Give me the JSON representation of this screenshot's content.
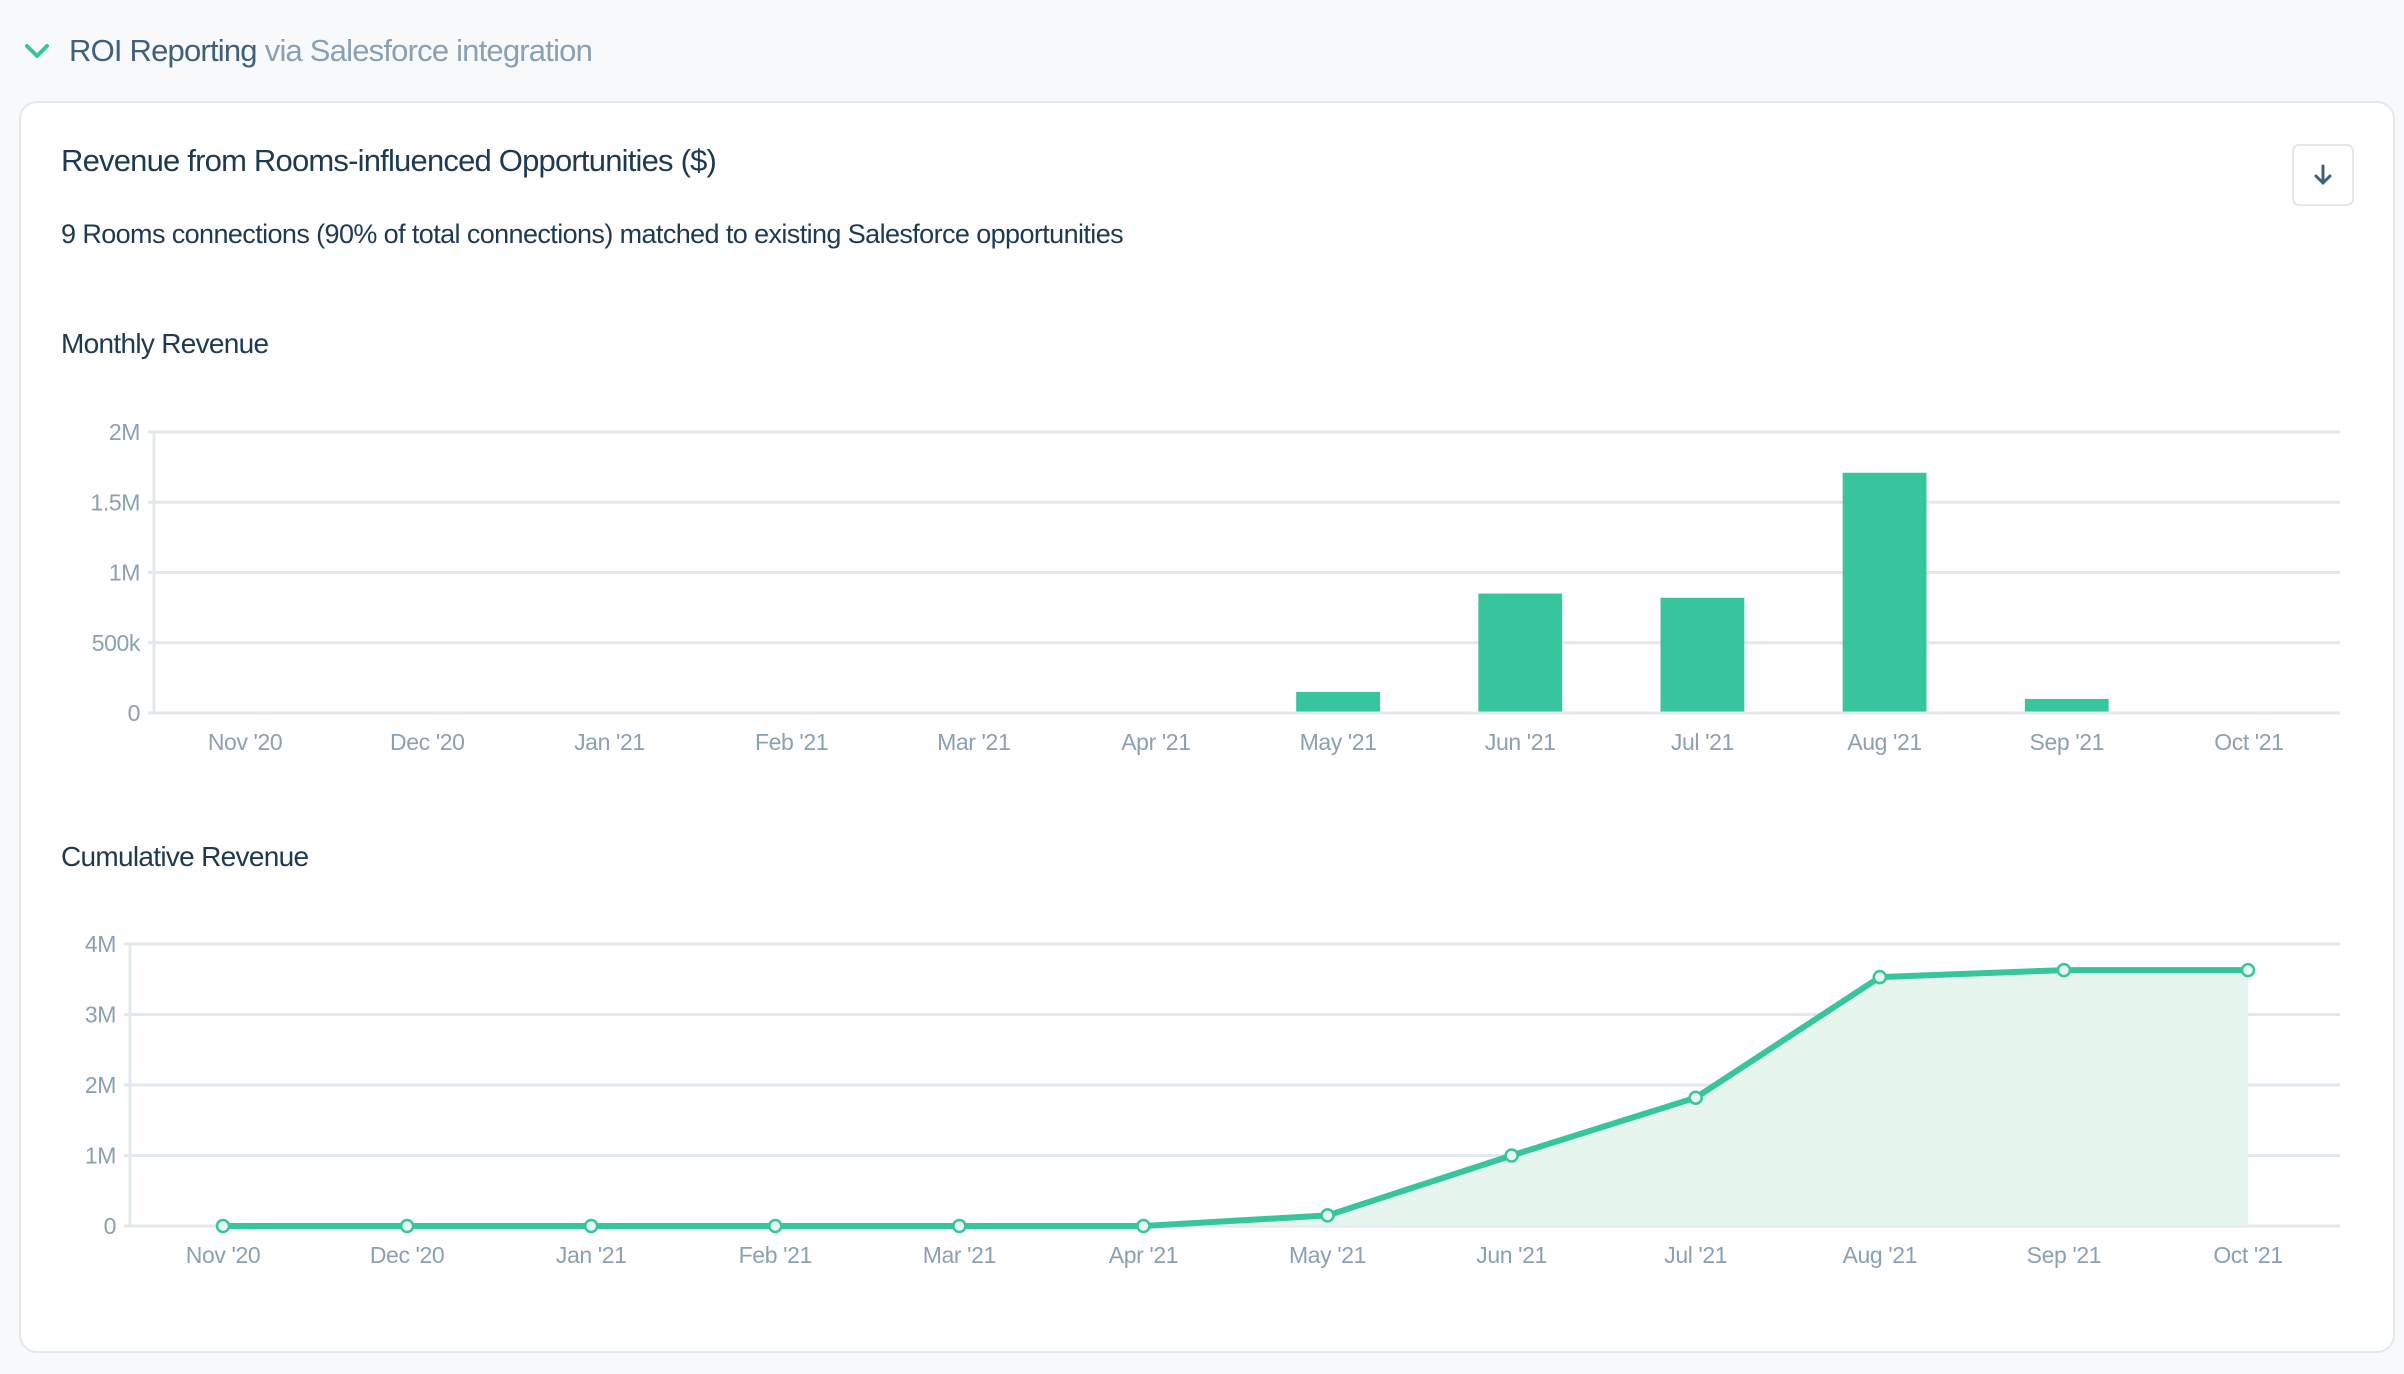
{
  "section": {
    "title": "ROI Reporting",
    "subtitle": "via Salesforce integration",
    "icon": "chevron-down-icon",
    "accent_color": "#36c59c"
  },
  "card": {
    "title": "Revenue from Rooms-influenced Opportunities ($)",
    "description": "9 Rooms connections (90% of total connections) matched to existing Salesforce opportunities",
    "download_icon": "arrow-down-icon"
  },
  "chart_data": [
    {
      "type": "bar",
      "title": "Monthly Revenue",
      "xlabel": "",
      "ylabel": "",
      "categories": [
        "Nov '20",
        "Dec '20",
        "Jan '21",
        "Feb '21",
        "Mar '21",
        "Apr '21",
        "May '21",
        "Jun '21",
        "Jul '21",
        "Aug '21",
        "Sep '21",
        "Oct '21"
      ],
      "values": [
        0,
        0,
        0,
        0,
        0,
        0,
        150000,
        850000,
        820000,
        1710000,
        100000,
        0
      ],
      "ylim": [
        0,
        2000000
      ],
      "yticks": [
        0,
        500000,
        1000000,
        1500000,
        2000000
      ],
      "ytick_labels": [
        "0",
        "500k",
        "1M",
        "1.5M",
        "2M"
      ],
      "grid": true,
      "color": "#36c59c"
    },
    {
      "type": "area",
      "title": "Cumulative Revenue",
      "xlabel": "",
      "ylabel": "",
      "categories": [
        "Nov '20",
        "Dec '20",
        "Jan '21",
        "Feb '21",
        "Mar '21",
        "Apr '21",
        "May '21",
        "Jun '21",
        "Jul '21",
        "Aug '21",
        "Sep '21",
        "Oct '21"
      ],
      "values": [
        0,
        0,
        0,
        0,
        0,
        0,
        150000,
        1000000,
        1820000,
        3530000,
        3630000,
        3630000
      ],
      "ylim": [
        0,
        4000000
      ],
      "yticks": [
        0,
        1000000,
        2000000,
        3000000,
        4000000
      ],
      "ytick_labels": [
        "0",
        "1M",
        "2M",
        "3M",
        "4M"
      ],
      "grid": true,
      "color": "#36c59c",
      "fill_color": "#e6f5ee"
    }
  ]
}
